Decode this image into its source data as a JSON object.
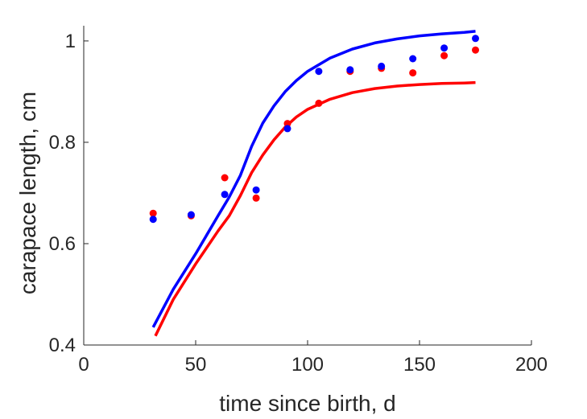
{
  "chart_data": {
    "type": "scatter",
    "title": "",
    "xlabel": "time since birth, d",
    "ylabel": "carapace length, cm",
    "xlim": [
      0,
      200
    ],
    "ylim": [
      0.4,
      1.03
    ],
    "xticks": [
      "0",
      "50",
      "100",
      "150",
      "200"
    ],
    "yticks": [
      "0.4",
      "0.6",
      "0.8",
      "1"
    ],
    "xtick_values": [
      0,
      50,
      100,
      150,
      200
    ],
    "ytick_values": [
      0.4,
      0.6,
      0.8,
      1.0
    ],
    "grid": false,
    "legend": "none",
    "series": [
      {
        "kind": "points",
        "color": "#ff0000",
        "x": [
          31,
          48,
          63,
          77,
          91,
          105,
          119,
          133,
          147,
          161,
          175
        ],
        "y": [
          0.66,
          0.655,
          0.73,
          0.69,
          0.837,
          0.877,
          0.94,
          0.946,
          0.937,
          0.971,
          0.982
        ]
      },
      {
        "kind": "points",
        "color": "#0000ff",
        "x": [
          31,
          48,
          63,
          77,
          91,
          105,
          119,
          133,
          147,
          161,
          175
        ],
        "y": [
          0.648,
          0.657,
          0.697,
          0.706,
          0.827,
          0.94,
          0.943,
          0.95,
          0.965,
          0.986,
          1.005
        ]
      },
      {
        "kind": "line",
        "color": "#ff0000",
        "x": [
          32,
          40,
          50,
          60,
          65,
          70,
          75,
          80,
          85,
          90,
          95,
          100,
          110,
          120,
          130,
          140,
          150,
          160,
          170,
          175
        ],
        "y": [
          0.418,
          0.49,
          0.56,
          0.625,
          0.655,
          0.695,
          0.74,
          0.775,
          0.805,
          0.83,
          0.85,
          0.865,
          0.885,
          0.898,
          0.906,
          0.911,
          0.914,
          0.916,
          0.917,
          0.918
        ]
      },
      {
        "kind": "line",
        "color": "#0000ff",
        "x": [
          31,
          40,
          50,
          60,
          65,
          70,
          75,
          80,
          85,
          90,
          95,
          100,
          110,
          120,
          130,
          140,
          150,
          160,
          170,
          175
        ],
        "y": [
          0.435,
          0.51,
          0.58,
          0.655,
          0.692,
          0.735,
          0.792,
          0.838,
          0.872,
          0.9,
          0.922,
          0.94,
          0.966,
          0.984,
          0.996,
          1.004,
          1.01,
          1.014,
          1.017,
          1.019
        ]
      }
    ]
  }
}
